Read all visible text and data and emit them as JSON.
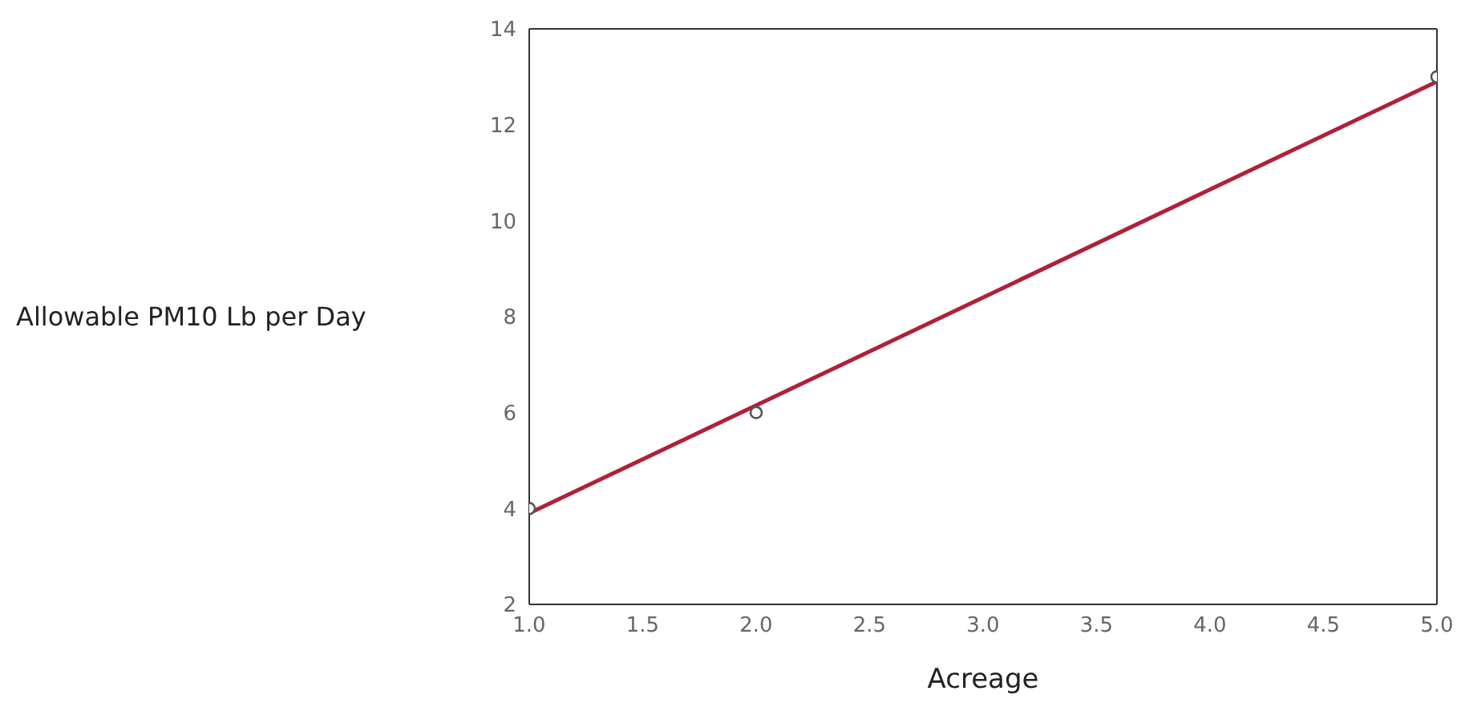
{
  "chart_data": {
    "type": "scatter",
    "xlabel": "Acreage",
    "ylabel": "Allowable PM10 Lb per Day",
    "xlim": [
      1,
      5
    ],
    "xticks": [
      {
        "value": 1,
        "label": "1.0"
      },
      {
        "value": 1.5,
        "label": "1.5"
      },
      {
        "value": 2,
        "label": "2.0"
      },
      {
        "value": 2.5,
        "label": "2.5"
      },
      {
        "value": 3,
        "label": "3.0"
      },
      {
        "value": 3.5,
        "label": "3.5"
      },
      {
        "value": 4,
        "label": "4.0"
      },
      {
        "value": 4.5,
        "label": "4.5"
      },
      {
        "value": 5,
        "label": "5.0"
      }
    ],
    "ylim": [
      2,
      14
    ],
    "yticks": [
      2,
      4,
      6,
      8,
      10,
      12,
      14
    ],
    "series": [
      {
        "type": "line",
        "color": "#b0203a",
        "x": [
          1,
          5
        ],
        "values": [
          3.9,
          12.9
        ],
        "marker": "none",
        "line_style": "solid"
      },
      {
        "color": "#555555",
        "x": [
          1,
          2,
          5
        ],
        "values": [
          4,
          6,
          13
        ],
        "marker": "circle"
      }
    ]
  }
}
